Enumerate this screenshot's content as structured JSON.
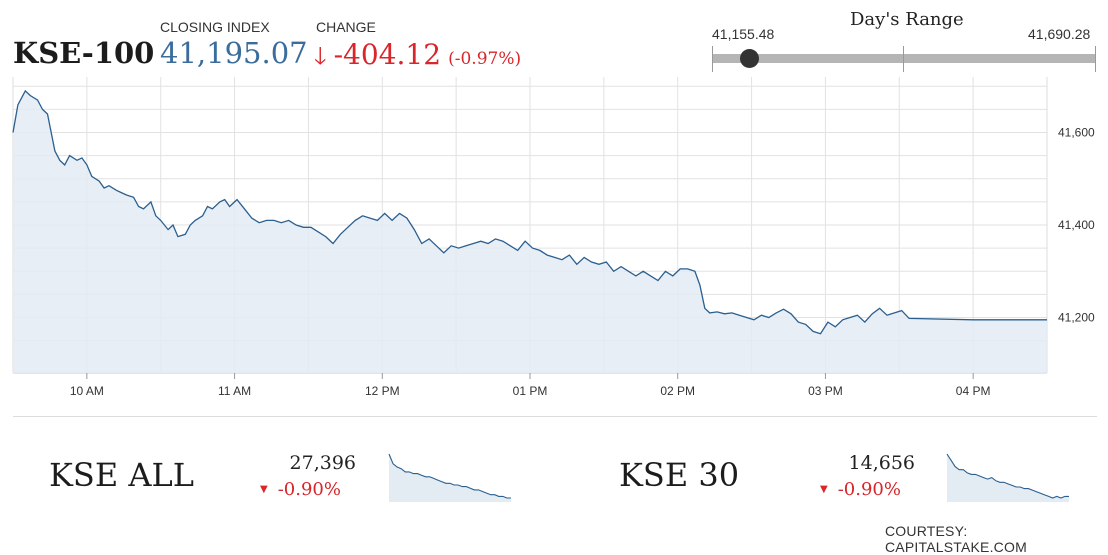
{
  "header": {
    "index_name": "KSE-100",
    "closing_label": "CLOSING INDEX",
    "closing_value": "41,195.07",
    "change_label": "CHANGE",
    "change_arrow": "🡓",
    "change_value": "-404.12",
    "change_pct": "(-0.97%)"
  },
  "range": {
    "title": "Day's Range",
    "low": "41,155.48",
    "high": "41,690.28",
    "low_value": 41155.48,
    "high_value": 41690.28,
    "current_value": 41195.07
  },
  "colors": {
    "line": "#2a5f8f",
    "area": "#e3ebf3",
    "negative": "#d8262a",
    "accent": "#3a6d9c"
  },
  "chart_data": {
    "type": "area",
    "ylim": [
      41080,
      41720
    ],
    "y_ticks": [
      41200,
      41400,
      41600
    ],
    "y_tick_labels": [
      "41,200",
      "41,400",
      "41,600"
    ],
    "x_ticks": [
      "10 AM",
      "11 AM",
      "12 PM",
      "01 PM",
      "02 PM",
      "03 PM",
      "04 PM"
    ],
    "x_range": [
      "09:30",
      "16:30"
    ],
    "grid": true,
    "series": [
      {
        "x": [
          "09:30",
          "09:32",
          "09:35",
          "09:37",
          "09:40",
          "09:42",
          "09:44",
          "09:47",
          "09:49",
          "09:51",
          "09:53",
          "09:56",
          "09:58",
          "10:00",
          "10:02",
          "10:05",
          "10:07",
          "10:09",
          "10:12",
          "10:14",
          "10:16",
          "10:19",
          "10:21",
          "10:23",
          "10:26",
          "10:28",
          "10:30",
          "10:33",
          "10:35",
          "10:37",
          "10:40",
          "10:42",
          "10:44",
          "10:47",
          "10:49",
          "10:51",
          "10:54",
          "10:56",
          "10:58",
          "11:01",
          "11:04",
          "11:07",
          "11:10",
          "11:13",
          "11:16",
          "11:19",
          "11:22",
          "11:25",
          "11:28",
          "11:31",
          "11:34",
          "11:37",
          "11:40",
          "11:43",
          "11:46",
          "11:49",
          "11:52",
          "11:55",
          "11:58",
          "12:01",
          "12:04",
          "12:07",
          "12:10",
          "12:13",
          "12:16",
          "12:19",
          "12:22",
          "12:25",
          "12:28",
          "12:31",
          "12:34",
          "12:37",
          "12:40",
          "12:43",
          "12:46",
          "12:49",
          "12:52",
          "12:55",
          "12:58",
          "13:01",
          "13:04",
          "13:07",
          "13:10",
          "13:13",
          "13:16",
          "13:19",
          "13:22",
          "13:25",
          "13:28",
          "13:31",
          "13:34",
          "13:37",
          "13:40",
          "13:43",
          "13:46",
          "13:49",
          "13:52",
          "13:55",
          "13:58",
          "14:01",
          "14:04",
          "14:07",
          "14:09",
          "14:11",
          "14:13",
          "14:16",
          "14:19",
          "14:22",
          "14:25",
          "14:28",
          "14:31",
          "14:34",
          "14:37",
          "14:40",
          "14:43",
          "14:46",
          "14:49",
          "14:52",
          "14:55",
          "14:58",
          "15:01",
          "15:04",
          "15:07",
          "15:10",
          "15:13",
          "15:16",
          "15:19",
          "15:22",
          "15:25",
          "15:28",
          "15:31",
          "15:34",
          "16:00",
          "16:30"
        ],
        "values": [
          41600,
          41660,
          41690,
          41680,
          41670,
          41650,
          41640,
          41560,
          41540,
          41530,
          41550,
          41540,
          41545,
          41530,
          41505,
          41495,
          41480,
          41485,
          41475,
          41470,
          41465,
          41460,
          41440,
          41435,
          41450,
          41420,
          41410,
          41390,
          41400,
          41375,
          41380,
          41400,
          41410,
          41420,
          41440,
          41435,
          41450,
          41455,
          41440,
          41455,
          41435,
          41415,
          41405,
          41410,
          41410,
          41405,
          41410,
          41400,
          41395,
          41395,
          41385,
          41375,
          41360,
          41380,
          41395,
          41410,
          41420,
          41415,
          41410,
          41425,
          41410,
          41425,
          41415,
          41390,
          41360,
          41370,
          41355,
          41340,
          41355,
          41350,
          41355,
          41360,
          41365,
          41360,
          41370,
          41365,
          41355,
          41345,
          41365,
          41350,
          41345,
          41335,
          41330,
          41325,
          41335,
          41315,
          41330,
          41320,
          41315,
          41320,
          41300,
          41310,
          41300,
          41290,
          41300,
          41290,
          41280,
          41300,
          41290,
          41305,
          41305,
          41300,
          41270,
          41220,
          41210,
          41212,
          41208,
          41210,
          41205,
          41200,
          41195,
          41205,
          41200,
          41210,
          41218,
          41208,
          41190,
          41185,
          41170,
          41165,
          41190,
          41180,
          41195,
          41200,
          41205,
          41190,
          41208,
          41220,
          41205,
          41210,
          41215,
          41198,
          41195,
          41195
        ]
      }
    ]
  },
  "subindices": [
    {
      "name": "KSE ALL",
      "value": "27,396",
      "arrow": "▼",
      "change": "-0.90%",
      "spark": [
        28,
        22,
        20,
        19,
        17,
        17,
        16,
        16,
        15,
        14,
        14,
        13,
        12,
        11,
        10,
        10,
        9,
        9,
        8,
        8,
        7,
        6,
        6,
        5,
        4,
        3,
        3,
        2,
        2,
        1,
        1
      ]
    },
    {
      "name": "KSE 30",
      "value": "14,656",
      "arrow": "▼",
      "change": "-0.90%",
      "spark": [
        30,
        26,
        22,
        20,
        20,
        18,
        17,
        17,
        16,
        15,
        14,
        15,
        13,
        12,
        12,
        11,
        10,
        9,
        9,
        8,
        8,
        7,
        6,
        5,
        4,
        3,
        2,
        3,
        2,
        3,
        3
      ]
    }
  ],
  "courtesy": "COURTESY: CAPITALSTAKE.COM"
}
